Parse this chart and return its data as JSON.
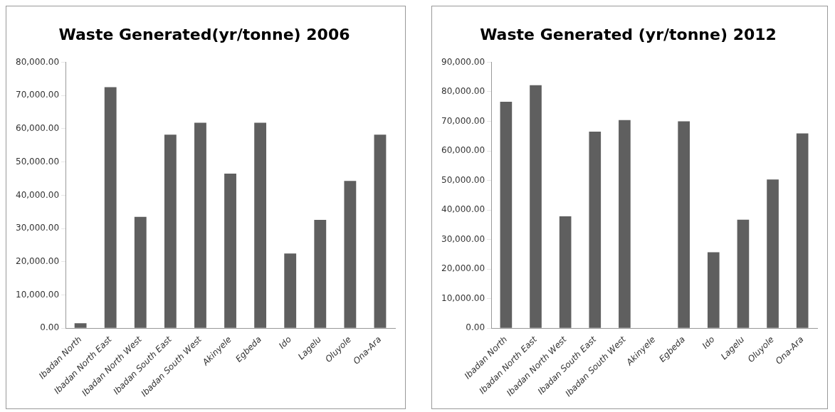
{
  "chart_data": [
    {
      "type": "bar",
      "title": "Waste Generated(yr/tonne) 2006",
      "categories": [
        "Ibadan North",
        "Ibadan North East",
        "Ibadan North West",
        "Ibadan South East",
        "Ibadan South West",
        "Akinyele",
        "Egbeda",
        "Ido",
        "Lagelu",
        "Oluyole",
        "Ona-Ara"
      ],
      "values": [
        1500,
        72500,
        33500,
        58200,
        61800,
        46500,
        61800,
        22500,
        32600,
        44300,
        58200
      ],
      "color": "#5f5f5f",
      "ylim": [
        0,
        80000
      ],
      "yticks": [
        {
          "value": 0,
          "label": "0.00"
        },
        {
          "value": 10000,
          "label": "10,000.00"
        },
        {
          "value": 20000,
          "label": "20,000.00"
        },
        {
          "value": 30000,
          "label": "30,000.00"
        },
        {
          "value": 40000,
          "label": "40,000.00"
        },
        {
          "value": 50000,
          "label": "50,000.00"
        },
        {
          "value": 60000,
          "label": "60,000.00"
        },
        {
          "value": 70000,
          "label": "70,000.00"
        },
        {
          "value": 80000,
          "label": "80,000.00"
        }
      ],
      "grid": false,
      "legend": false
    },
    {
      "type": "bar",
      "title": "Waste Generated (yr/tonne) 2012",
      "categories": [
        "Ibadan North",
        "Ibadan North East",
        "Ibadan North West",
        "Ibadan South East",
        "Ibadan South West",
        "Akinyele",
        "Egbeda",
        "Ido",
        "Lagelu",
        "Oluyole",
        "Ona-Ara"
      ],
      "values": [
        76600,
        82200,
        37900,
        66500,
        70400,
        0,
        70000,
        25700,
        36700,
        50300,
        65900
      ],
      "color": "#5f5f5f",
      "ylim": [
        0,
        90000
      ],
      "yticks": [
        {
          "value": 0,
          "label": "0.00"
        },
        {
          "value": 10000,
          "label": "10,000.00"
        },
        {
          "value": 20000,
          "label": "20,000.00"
        },
        {
          "value": 30000,
          "label": "30,000.00"
        },
        {
          "value": 40000,
          "label": "40,000.00"
        },
        {
          "value": 50000,
          "label": "50,000.00"
        },
        {
          "value": 60000,
          "label": "60,000.00"
        },
        {
          "value": 70000,
          "label": "70,000.00"
        },
        {
          "value": 80000,
          "label": "80,000.00"
        },
        {
          "value": 90000,
          "label": "90,000.00"
        }
      ],
      "grid": false,
      "legend": false
    }
  ]
}
